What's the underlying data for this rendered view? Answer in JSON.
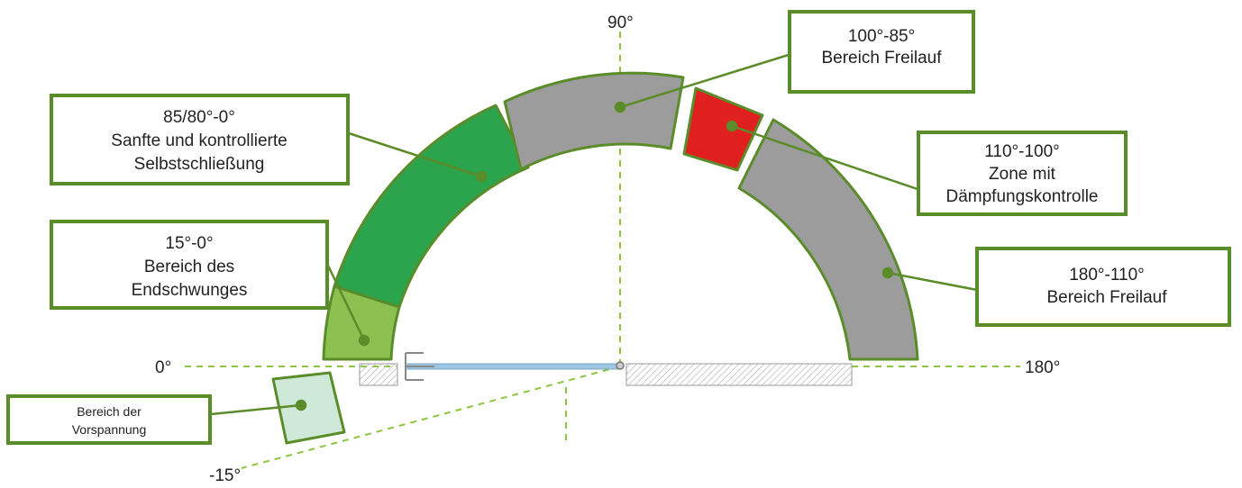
{
  "colors": {
    "frame": "#5b8c2a",
    "guide": "#8cc63f",
    "zone_green": "#2ca44e",
    "zone_light_green": "#8cc152",
    "zone_pale_green": "#cfe9d9",
    "zone_grey": "#9c9c9c",
    "zone_red": "#e0201f",
    "wall_hatch": "#bbbbbb",
    "door_leaf": "#9fc6e0"
  },
  "angles": {
    "a0": "0°",
    "a90": "90°",
    "a180": "180°",
    "am15": "-15°"
  },
  "callouts": [
    {
      "id": "freilauf-100-85",
      "lines": [
        "100°-85°",
        "Bereich Freilauf"
      ],
      "zone_color": "zone_grey"
    },
    {
      "id": "selbstschliessung",
      "lines": [
        "85/80°-0°",
        "Sanfte und kontrollierte",
        "Selbstschließung"
      ],
      "zone_color": "zone_green"
    },
    {
      "id": "daempfung",
      "lines": [
        "110°-100°",
        "Zone mit",
        "Dämpfungskontrolle"
      ],
      "zone_color": "zone_red"
    },
    {
      "id": "endschwung",
      "lines": [
        "15°-0°",
        "Bereich des",
        "Endschwunges"
      ],
      "zone_color": "zone_light_green"
    },
    {
      "id": "freilauf-180-110",
      "lines": [
        "180°-110°",
        "Bereich Freilauf"
      ],
      "zone_color": "zone_grey"
    },
    {
      "id": "vorspannung",
      "lines": [
        "Bereich der",
        "Vorspannung"
      ],
      "zone_color": "zone_pale_green"
    }
  ]
}
